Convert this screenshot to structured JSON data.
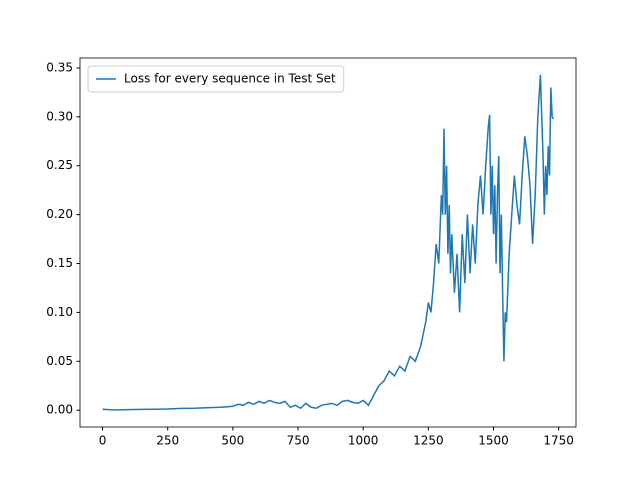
{
  "chart_data": {
    "type": "line",
    "x": [
      0,
      30,
      60,
      100,
      150,
      200,
      250,
      300,
      350,
      400,
      450,
      480,
      500,
      520,
      540,
      560,
      580,
      600,
      620,
      640,
      660,
      680,
      700,
      720,
      740,
      760,
      780,
      800,
      820,
      840,
      860,
      880,
      900,
      920,
      940,
      960,
      980,
      1000,
      1020,
      1040,
      1060,
      1080,
      1100,
      1120,
      1140,
      1160,
      1180,
      1200,
      1220,
      1240,
      1250,
      1260,
      1270,
      1280,
      1290,
      1300,
      1305,
      1310,
      1315,
      1320,
      1325,
      1330,
      1335,
      1340,
      1350,
      1360,
      1370,
      1380,
      1390,
      1400,
      1410,
      1420,
      1430,
      1440,
      1450,
      1460,
      1470,
      1480,
      1485,
      1490,
      1495,
      1500,
      1505,
      1510,
      1515,
      1520,
      1525,
      1530,
      1535,
      1540,
      1545,
      1550,
      1560,
      1570,
      1580,
      1590,
      1600,
      1610,
      1620,
      1630,
      1640,
      1650,
      1660,
      1670,
      1680,
      1685,
      1690,
      1695,
      1700,
      1705,
      1710,
      1715,
      1720,
      1725,
      1730
    ],
    "series": [
      {
        "name": "Loss for every sequence in Test Set",
        "color": "#1f77b4",
        "values": [
          0.001,
          0.0005,
          0.0003,
          0.0006,
          0.0008,
          0.001,
          0.0012,
          0.0018,
          0.002,
          0.0025,
          0.003,
          0.0035,
          0.004,
          0.006,
          0.005,
          0.008,
          0.006,
          0.009,
          0.007,
          0.01,
          0.008,
          0.007,
          0.009,
          0.003,
          0.005,
          0.002,
          0.007,
          0.003,
          0.002,
          0.005,
          0.006,
          0.007,
          0.005,
          0.009,
          0.01,
          0.008,
          0.007,
          0.01,
          0.005,
          0.015,
          0.025,
          0.03,
          0.04,
          0.035,
          0.045,
          0.04,
          0.055,
          0.05,
          0.065,
          0.09,
          0.11,
          0.1,
          0.13,
          0.17,
          0.15,
          0.22,
          0.2,
          0.288,
          0.2,
          0.25,
          0.16,
          0.21,
          0.14,
          0.18,
          0.12,
          0.16,
          0.1,
          0.18,
          0.13,
          0.2,
          0.14,
          0.19,
          0.15,
          0.21,
          0.24,
          0.2,
          0.25,
          0.29,
          0.302,
          0.2,
          0.25,
          0.18,
          0.23,
          0.15,
          0.22,
          0.26,
          0.14,
          0.2,
          0.12,
          0.05,
          0.1,
          0.09,
          0.16,
          0.2,
          0.24,
          0.21,
          0.19,
          0.24,
          0.28,
          0.26,
          0.23,
          0.17,
          0.22,
          0.3,
          0.343,
          0.3,
          0.26,
          0.2,
          0.25,
          0.22,
          0.27,
          0.24,
          0.33,
          0.3,
          0.298
        ]
      }
    ],
    "xlim": [
      -86.5,
      1816.5
    ],
    "xticks": [
      0,
      250,
      500,
      750,
      1000,
      1250,
      1500,
      1750
    ],
    "ylim": [
      -0.0172,
      0.3602
    ],
    "yticks": [
      {
        "value": 0,
        "label": "0.00"
      },
      {
        "value": 0.05,
        "label": "0.05"
      },
      {
        "value": 0.1,
        "label": "0.10"
      },
      {
        "value": 0.15,
        "label": "0.15"
      },
      {
        "value": 0.2,
        "label": "0.20"
      },
      {
        "value": 0.25,
        "label": "0.25"
      },
      {
        "value": 0.3,
        "label": "0.30"
      },
      {
        "value": 0.35,
        "label": "0.35"
      }
    ],
    "legend": "upper left",
    "grid": false
  }
}
